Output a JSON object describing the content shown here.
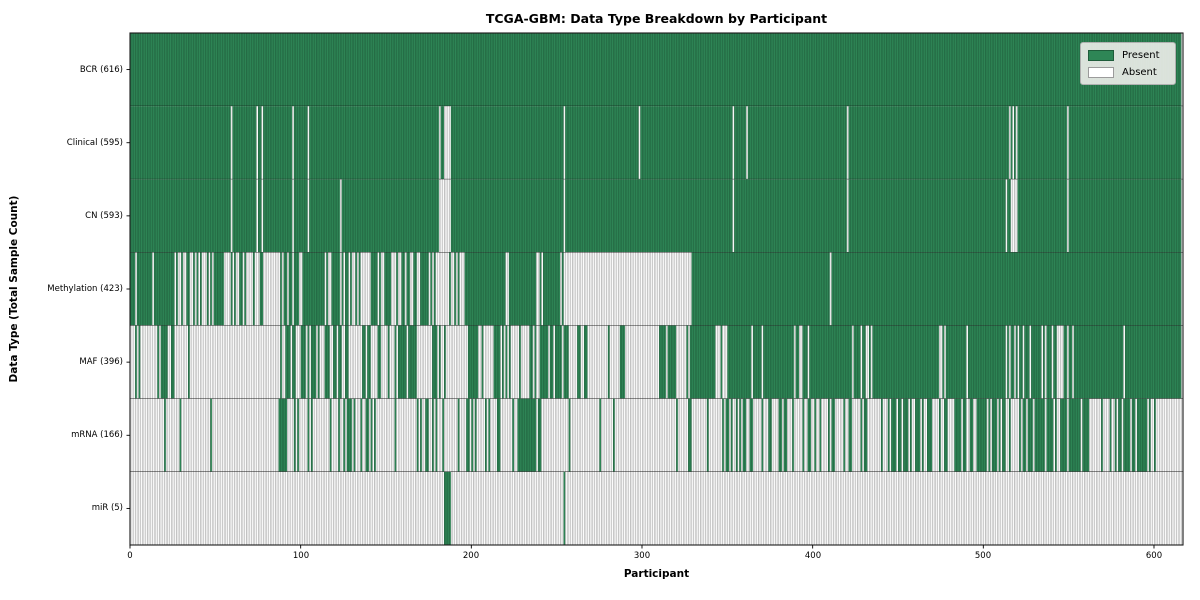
{
  "chart_data": {
    "type": "heatmap",
    "title": "TCGA-GBM: Data Type Breakdown by Participant",
    "xlabel": "Participant",
    "ylabel": "Data Type (Total Sample Count)",
    "n_participants": 616,
    "xlim": [
      0,
      617
    ],
    "x_ticks": [
      "0",
      "100",
      "200",
      "300",
      "400",
      "500",
      "600"
    ],
    "x_tick_values": [
      0,
      100,
      200,
      300,
      400,
      500,
      600
    ],
    "grid": "row-separators-only",
    "legend": {
      "position": "upper right",
      "entries": [
        {
          "label": "Present",
          "color": "#2e8656"
        },
        {
          "label": "Absent",
          "color": "#ffffff"
        }
      ]
    },
    "colors": {
      "present": "#2e8656",
      "present_edge": "#1e5c3a",
      "absent": "#ffffff",
      "absent_edge": "#9b9b9b",
      "spine": "#1a1a1a",
      "separator": "#111111"
    },
    "rows": [
      {
        "name": "BCR",
        "label": "BCR (616)",
        "total": 616,
        "segments": [
          [
            0,
            616,
            1
          ]
        ]
      },
      {
        "name": "Clinical",
        "label": "Clinical (595)",
        "total": 595,
        "segments": [
          [
            0,
            59,
            1
          ],
          [
            59,
            60,
            0
          ],
          [
            60,
            74,
            1
          ],
          [
            74,
            75,
            0
          ],
          [
            75,
            77,
            1
          ],
          [
            77,
            78,
            0
          ],
          [
            78,
            95,
            1
          ],
          [
            95,
            96,
            0
          ],
          [
            96,
            104,
            1
          ],
          [
            104,
            105,
            0
          ],
          [
            105,
            181,
            1
          ],
          [
            181,
            188,
            0.3
          ],
          [
            188,
            254,
            1
          ],
          [
            254,
            255,
            0
          ],
          [
            255,
            298,
            1
          ],
          [
            298,
            299,
            0
          ],
          [
            299,
            353,
            1
          ],
          [
            353,
            354,
            0
          ],
          [
            354,
            361,
            1
          ],
          [
            361,
            362,
            0
          ],
          [
            362,
            420,
            1
          ],
          [
            420,
            421,
            0
          ],
          [
            421,
            515,
            1
          ],
          [
            515,
            516,
            0
          ],
          [
            516,
            517,
            1
          ],
          [
            517,
            518,
            0
          ],
          [
            518,
            519,
            1
          ],
          [
            519,
            520,
            0
          ],
          [
            520,
            549,
            1
          ],
          [
            549,
            550,
            0
          ],
          [
            550,
            616,
            1
          ]
        ]
      },
      {
        "name": "CN",
        "label": "CN (593)",
        "total": 593,
        "segments": [
          [
            0,
            59,
            1
          ],
          [
            59,
            60,
            0
          ],
          [
            60,
            74,
            1
          ],
          [
            74,
            75,
            0
          ],
          [
            75,
            77,
            1
          ],
          [
            77,
            78,
            0
          ],
          [
            78,
            95,
            1
          ],
          [
            95,
            96,
            0
          ],
          [
            96,
            104,
            1
          ],
          [
            104,
            105,
            0
          ],
          [
            105,
            123,
            1
          ],
          [
            123,
            124,
            0
          ],
          [
            124,
            181,
            1
          ],
          [
            181,
            188,
            0.3
          ],
          [
            188,
            254,
            1
          ],
          [
            254,
            255,
            0
          ],
          [
            255,
            353,
            1
          ],
          [
            353,
            354,
            0
          ],
          [
            354,
            420,
            1
          ],
          [
            420,
            421,
            0
          ],
          [
            421,
            513,
            1
          ],
          [
            513,
            520,
            0.25
          ],
          [
            520,
            549,
            1
          ],
          [
            549,
            550,
            0
          ],
          [
            550,
            616,
            1
          ]
        ]
      },
      {
        "name": "Methylation",
        "label": "Methylation (423)",
        "total": 423,
        "segments": [
          [
            0,
            3,
            1
          ],
          [
            3,
            4,
            0
          ],
          [
            4,
            13,
            1
          ],
          [
            13,
            14,
            0
          ],
          [
            14,
            17,
            1
          ],
          [
            17,
            55,
            0.55
          ],
          [
            55,
            88,
            0.18
          ],
          [
            88,
            100,
            0.4
          ],
          [
            100,
            123,
            0.85
          ],
          [
            123,
            135,
            0.5
          ],
          [
            135,
            148,
            0.25
          ],
          [
            148,
            162,
            0.5
          ],
          [
            162,
            177,
            0.6
          ],
          [
            177,
            197,
            0.25
          ],
          [
            197,
            254,
            0.9
          ],
          [
            254,
            329,
            0
          ],
          [
            329,
            410,
            1
          ],
          [
            410,
            411,
            0
          ],
          [
            411,
            616,
            1
          ]
        ]
      },
      {
        "name": "MAF",
        "label": "MAF (396)",
        "total": 396,
        "segments": [
          [
            0,
            18,
            0.08
          ],
          [
            18,
            28,
            0.5
          ],
          [
            28,
            62,
            0.1
          ],
          [
            62,
            88,
            0.05
          ],
          [
            88,
            101,
            0.75
          ],
          [
            101,
            115,
            0.45
          ],
          [
            115,
            125,
            0.6
          ],
          [
            125,
            134,
            0.15
          ],
          [
            134,
            148,
            0.7
          ],
          [
            148,
            153,
            0.1
          ],
          [
            153,
            168,
            0.8
          ],
          [
            168,
            177,
            0.3
          ],
          [
            177,
            182,
            0.8
          ],
          [
            182,
            197,
            0.3
          ],
          [
            197,
            207,
            0.7
          ],
          [
            207,
            213,
            0.2
          ],
          [
            213,
            219,
            0.7
          ],
          [
            219,
            241,
            0.35
          ],
          [
            241,
            257,
            0.85
          ],
          [
            257,
            310,
            0.15
          ],
          [
            310,
            320,
            0.9
          ],
          [
            320,
            328,
            0.45
          ],
          [
            328,
            342,
            0.95
          ],
          [
            342,
            350,
            0.4
          ],
          [
            350,
            370,
            0.95
          ],
          [
            370,
            371,
            0
          ],
          [
            371,
            388,
            0.95
          ],
          [
            388,
            398,
            0.6
          ],
          [
            398,
            421,
            0.95
          ],
          [
            421,
            435,
            0.5
          ],
          [
            435,
            474,
            0.95
          ],
          [
            474,
            479,
            0.5
          ],
          [
            479,
            513,
            0.95
          ],
          [
            513,
            514,
            0
          ],
          [
            514,
            523,
            0.9
          ],
          [
            523,
            524,
            0
          ],
          [
            524,
            542,
            0.95
          ],
          [
            542,
            546,
            0.4
          ],
          [
            546,
            552,
            0.9
          ],
          [
            552,
            553,
            0
          ],
          [
            553,
            582,
            0.97
          ],
          [
            582,
            583,
            0
          ],
          [
            583,
            616,
            0.97
          ]
        ]
      },
      {
        "name": "mRNA",
        "label": "mRNA (166)",
        "total": 166,
        "segments": [
          [
            0,
            20,
            0.05
          ],
          [
            20,
            21,
            1
          ],
          [
            21,
            29,
            0
          ],
          [
            29,
            30,
            1
          ],
          [
            30,
            87,
            0.02
          ],
          [
            87,
            93,
            0.8
          ],
          [
            93,
            101,
            0.1
          ],
          [
            101,
            107,
            0.5
          ],
          [
            107,
            117,
            0.1
          ],
          [
            117,
            118,
            1
          ],
          [
            118,
            122,
            0.1
          ],
          [
            122,
            130,
            0.5
          ],
          [
            130,
            134,
            0.1
          ],
          [
            134,
            150,
            0.45
          ],
          [
            150,
            163,
            0.15
          ],
          [
            163,
            172,
            0.35
          ],
          [
            172,
            177,
            0.1
          ],
          [
            177,
            188,
            0.5
          ],
          [
            188,
            197,
            0.1
          ],
          [
            197,
            207,
            0.3
          ],
          [
            207,
            217,
            0.6
          ],
          [
            217,
            227,
            0.1
          ],
          [
            227,
            241,
            0.65
          ],
          [
            241,
            257,
            0.1
          ],
          [
            257,
            310,
            0.04
          ],
          [
            310,
            349,
            0.15
          ],
          [
            349,
            376,
            0.45
          ],
          [
            376,
            402,
            0.35
          ],
          [
            402,
            446,
            0.35
          ],
          [
            446,
            462,
            0.7
          ],
          [
            462,
            480,
            0.35
          ],
          [
            480,
            506,
            0.6
          ],
          [
            506,
            526,
            0.55
          ],
          [
            526,
            552,
            0.5
          ],
          [
            552,
            562,
            0.8
          ],
          [
            562,
            576,
            0.1
          ],
          [
            576,
            590,
            0.5
          ],
          [
            590,
            596,
            0.85
          ],
          [
            596,
            616,
            0.1
          ]
        ]
      },
      {
        "name": "miR",
        "label": "miR (5)",
        "total": 5,
        "segments": [
          [
            0,
            184,
            0
          ],
          [
            184,
            188,
            1
          ],
          [
            188,
            254,
            0
          ],
          [
            254,
            255,
            1
          ],
          [
            255,
            616,
            0
          ]
        ]
      }
    ]
  }
}
